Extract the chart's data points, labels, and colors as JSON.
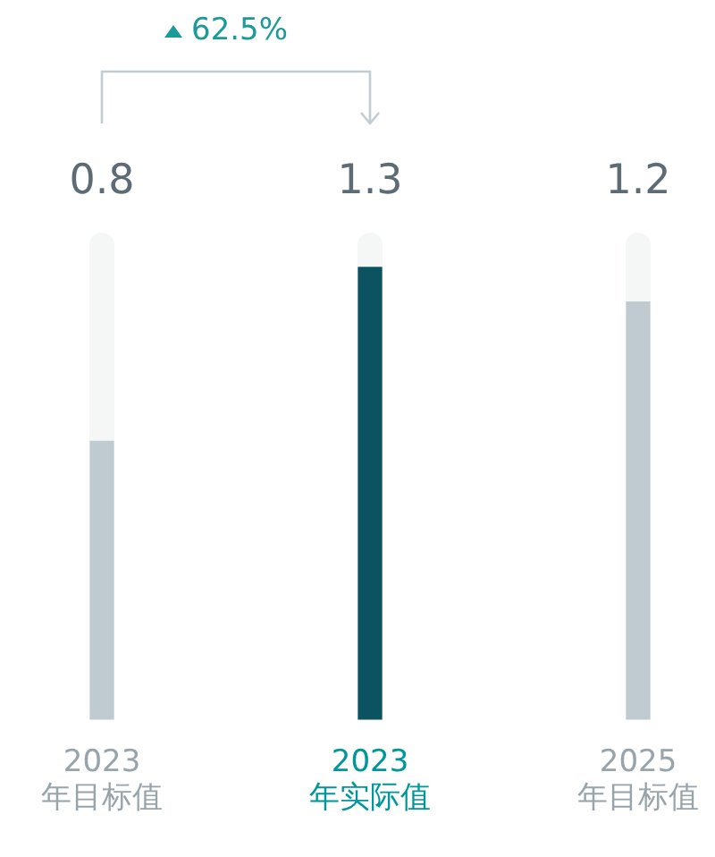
{
  "chart_data": {
    "type": "bar",
    "categories": [
      "2023\n年目标值",
      "2023\n年实际值",
      "2025\n年目标值"
    ],
    "values": [
      0.8,
      1.3,
      1.2
    ],
    "colors": [
      "#c0cbd1",
      "#0b5360",
      "#c0cbd1"
    ],
    "data_labels": true,
    "grid": false,
    "legend": false,
    "annotations": [
      "62.5%"
    ]
  }
}
